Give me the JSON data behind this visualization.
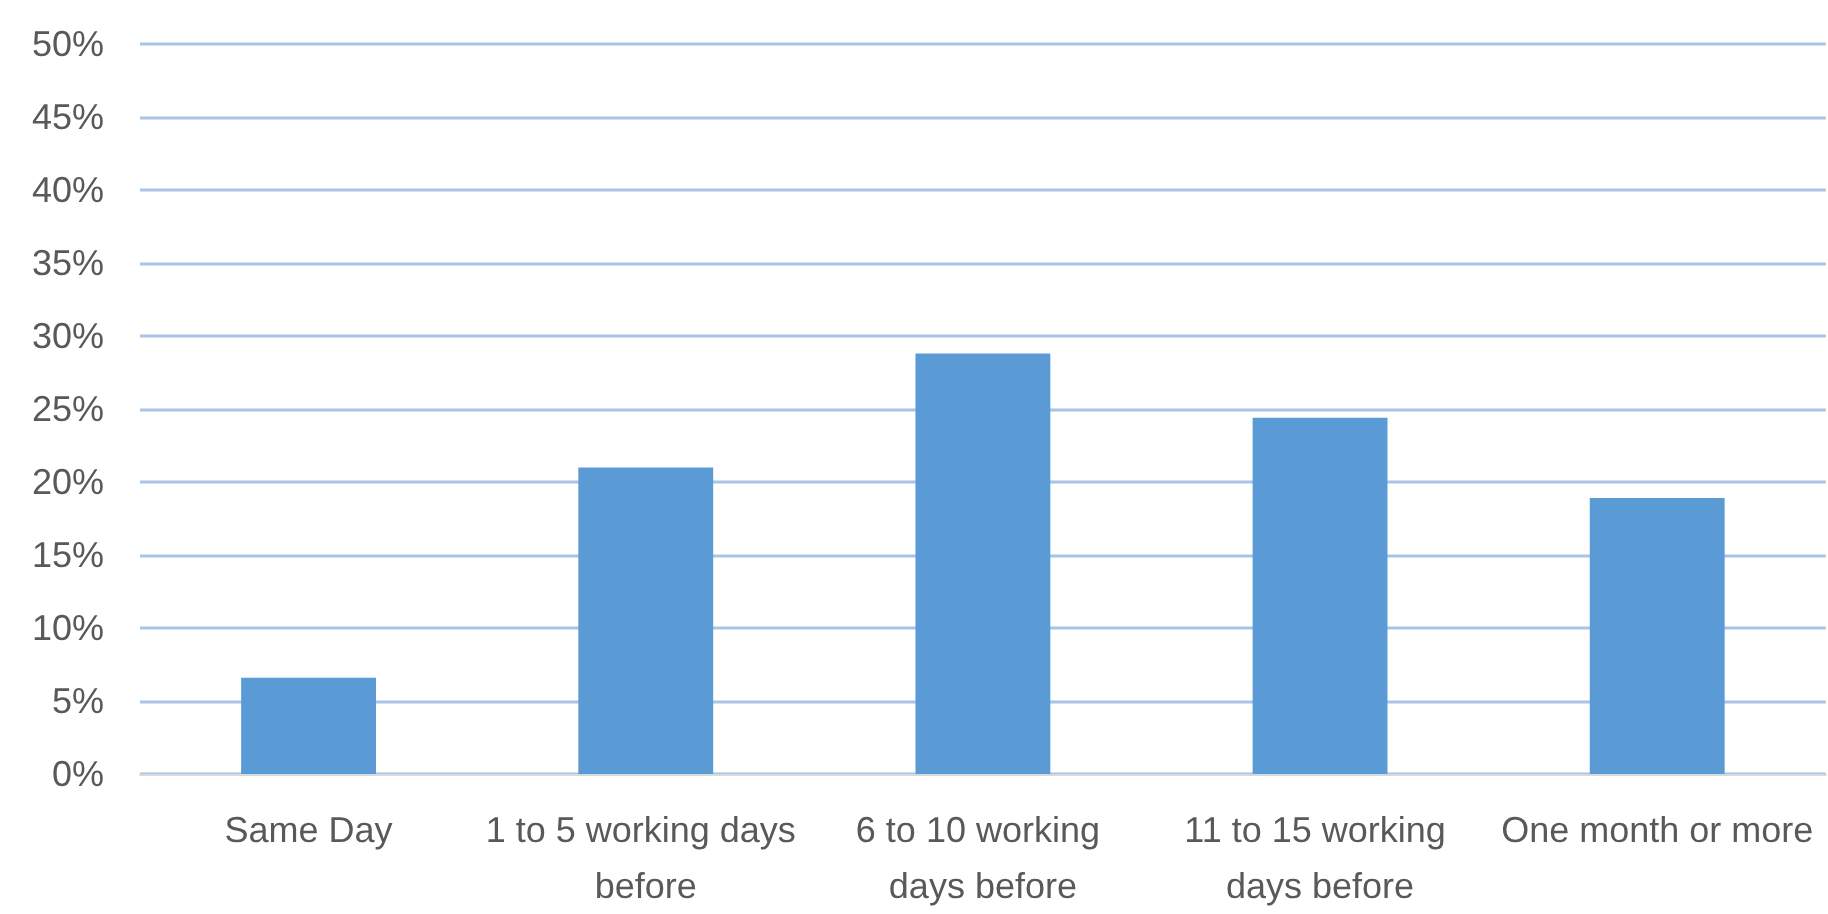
{
  "chart_data": {
    "type": "bar",
    "categories": [
      "Same Day",
      "1 to 5 working days before",
      "6 to 10 working days before",
      "11 to 15 working days before",
      "One month or more"
    ],
    "values": [
      6.6,
      21.0,
      28.8,
      24.4,
      18.9
    ],
    "color": "#5b9bd5",
    "ylim": [
      0,
      50
    ],
    "yticks": [
      {
        "value": 0,
        "label": "0%"
      },
      {
        "value": 5,
        "label": "5%"
      },
      {
        "value": 10,
        "label": "10%"
      },
      {
        "value": 15,
        "label": "15%"
      },
      {
        "value": 20,
        "label": "20%"
      },
      {
        "value": 25,
        "label": "25%"
      },
      {
        "value": 30,
        "label": "30%"
      },
      {
        "value": 35,
        "label": "35%"
      },
      {
        "value": 40,
        "label": "40%"
      },
      {
        "value": 45,
        "label": "45%"
      },
      {
        "value": 50,
        "label": "50%"
      }
    ],
    "grid": "y"
  }
}
